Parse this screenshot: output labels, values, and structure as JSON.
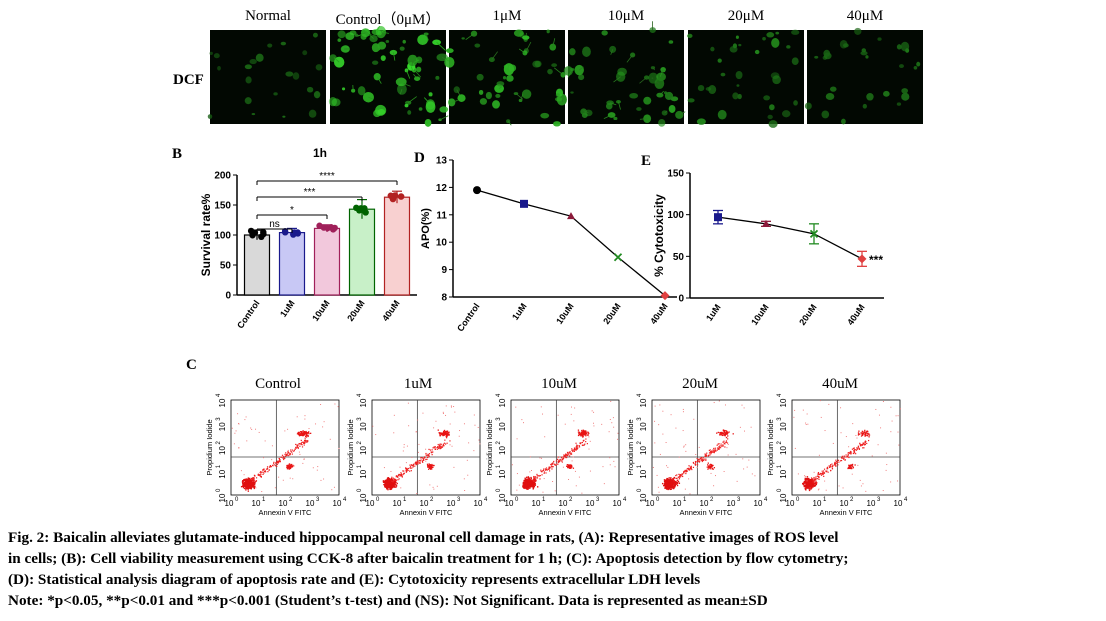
{
  "panel_a": {
    "row_label": "DCF",
    "images": [
      {
        "title": "Normal",
        "intensity": 0.25,
        "cells": 22
      },
      {
        "title": "Control（0μM）",
        "intensity": 1.0,
        "cells": 60
      },
      {
        "title": "1μM",
        "intensity": 0.8,
        "cells": 45
      },
      {
        "title": "10μM",
        "intensity": 0.65,
        "cells": 40
      },
      {
        "title": "20μM",
        "intensity": 0.45,
        "cells": 34
      },
      {
        "title": "40μM",
        "intensity": 0.35,
        "cells": 28
      }
    ]
  },
  "panel_b": {
    "letter": "B"
  },
  "panel_c": {
    "letter": "C",
    "plots": [
      {
        "title": "Control"
      },
      {
        "title": "1uM"
      },
      {
        "title": "10uM"
      },
      {
        "title": "20uM"
      },
      {
        "title": "40uM"
      }
    ],
    "xlabel": "Annexin V FITC",
    "ylabel": "Propidium Iodide",
    "ticks": [
      "10",
      "10",
      "10",
      "10",
      "10"
    ],
    "tick_exps": [
      "0",
      "1",
      "2",
      "3",
      "4"
    ]
  },
  "panel_d": {
    "letter": "D"
  },
  "panel_e": {
    "letter": "E"
  },
  "chart_data": [
    {
      "id": "B",
      "type": "bar",
      "title": "1h",
      "xlabel": "",
      "ylabel": "Survival rate%",
      "categories": [
        "Control",
        "1uM",
        "10uM",
        "20uM",
        "40uM"
      ],
      "values": [
        100,
        104,
        111,
        143,
        163
      ],
      "errors": [
        8,
        7,
        6,
        16,
        10
      ],
      "colors": [
        "#d9d9d9",
        "#c8c8f5",
        "#f2c8dc",
        "#c8f0c8",
        "#f8d0d0"
      ],
      "point_colors": [
        "#000000",
        "#1a1a8c",
        "#a0205a",
        "#006400",
        "#b22222"
      ],
      "ylim": [
        0,
        200
      ],
      "yticks": [
        0,
        50,
        100,
        150,
        200
      ],
      "significance": [
        {
          "label": "ns",
          "from": 0,
          "to": 1
        },
        {
          "label": "*",
          "from": 0,
          "to": 2
        },
        {
          "label": "***",
          "from": 0,
          "to": 3
        },
        {
          "label": "****",
          "from": 0,
          "to": 4
        }
      ]
    },
    {
      "id": "D",
      "type": "line",
      "title": "",
      "xlabel": "",
      "ylabel": "APO(%)",
      "categories": [
        "Control",
        "1uM",
        "10uM",
        "20uM",
        "40uM"
      ],
      "values": [
        11.9,
        11.4,
        10.95,
        9.45,
        8.05
      ],
      "marker_colors": [
        "#000000",
        "#1a1a8c",
        "#8b1a3a",
        "#228b22",
        "#e04040"
      ],
      "ylim": [
        8,
        13
      ],
      "yticks": [
        8,
        9,
        10,
        11,
        12,
        13
      ]
    },
    {
      "id": "E",
      "type": "line",
      "title": "",
      "xlabel": "",
      "ylabel": "% Cytotoxicity",
      "categories": [
        "1uM",
        "10uM",
        "20uM",
        "40uM"
      ],
      "values": [
        97,
        89,
        77,
        47
      ],
      "errors": [
        8,
        3,
        12,
        9
      ],
      "marker_colors": [
        "#1a1a8c",
        "#8b1a3a",
        "#228b22",
        "#e04040"
      ],
      "annotation": "***",
      "ylim": [
        0,
        150
      ],
      "yticks": [
        0,
        50,
        100,
        150
      ]
    }
  ],
  "caption": {
    "line1": "Fig. 2: Baicalin alleviates glutamate-induced hippocampal neuronal cell damage in rats, (A): Representative images of ROS level",
    "line2": "in cells; (B): Cell viability measurement using CCK-8 after baicalin treatment for 1 h; (C): Apoptosis detection by flow cytometry;",
    "line3": "(D): Statistical analysis diagram of apoptosis rate and (E): Cytotoxicity represents extracellular LDH levels",
    "line4": "Note: *p<0.05, **p<0.01 and ***p<0.001 (Student’s t-test) and (NS): Not Significant. Data is represented as mean±SD"
  }
}
